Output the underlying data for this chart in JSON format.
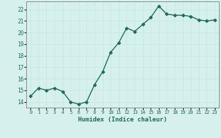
{
  "x_values": [
    0,
    1,
    2,
    3,
    4,
    5,
    6,
    7,
    8,
    9,
    10,
    11,
    12,
    13,
    14,
    15,
    16,
    17,
    18,
    19,
    20,
    21,
    22,
    23
  ],
  "y_values": [
    14.5,
    15.2,
    15.0,
    15.2,
    14.9,
    14.0,
    13.8,
    14.0,
    15.5,
    16.6,
    18.3,
    19.1,
    20.4,
    20.1,
    20.7,
    21.3,
    22.3,
    21.6,
    21.5,
    21.5,
    21.4,
    21.1,
    21.0,
    21.1
  ],
  "xlabel": "Humidex (Indice chaleur)",
  "line_color": "#1a6b5a",
  "marker": "D",
  "marker_size": 2.5,
  "bg_color": "#d6f0ee",
  "grid_color": "#c8e8e4",
  "ylim": [
    13.5,
    22.7
  ],
  "xlim": [
    -0.5,
    23.5
  ],
  "yticks": [
    14,
    15,
    16,
    17,
    18,
    19,
    20,
    21,
    22
  ],
  "xtick_labels": [
    "0",
    "1",
    "2",
    "3",
    "4",
    "5",
    "6",
    "7",
    "8",
    "9",
    "10",
    "11",
    "12",
    "13",
    "14",
    "15",
    "16",
    "17",
    "18",
    "19",
    "20",
    "21",
    "22",
    "23"
  ],
  "ytick_fontsize": 5.5,
  "xtick_fontsize": 5.0,
  "xlabel_fontsize": 6.5,
  "linewidth": 1.0
}
